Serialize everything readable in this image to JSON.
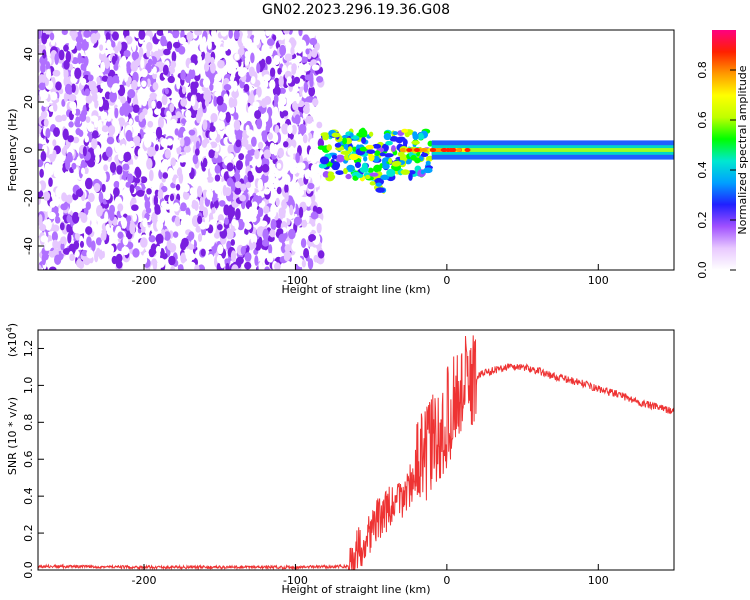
{
  "title": "GN02.2023.296.19.36.G08",
  "colors": {
    "snr_line": "#ee3333",
    "spectrogram_noise": "#7a1fe0",
    "colormap": [
      "#ffffff",
      "#e8c8ff",
      "#a050ff",
      "#2020ff",
      "#00a0ff",
      "#00e8d0",
      "#00ff00",
      "#c0ff00",
      "#ffff00",
      "#ff9900",
      "#ff2000",
      "#ff0080"
    ]
  },
  "chart_data": [
    {
      "type": "heatmap",
      "name": "spectrogram",
      "xlabel": "Height of straight line (km)",
      "ylabel": "Frequency (Hz)",
      "xlim": [
        -270,
        150
      ],
      "ylim": [
        -50,
        50
      ],
      "xticks": [
        -200,
        -100,
        0,
        100
      ],
      "yticks": [
        -40,
        -20,
        0,
        20,
        40
      ],
      "colorbar": {
        "label": "Normalized spectral amplitude",
        "range": [
          0,
          0.96
        ],
        "ticks": [
          0.0,
          0.2,
          0.4,
          0.6,
          0.8
        ]
      },
      "regions": [
        {
          "description_x": [
            -270,
            -83
          ],
          "freq_range": [
            -50,
            50
          ],
          "amplitude": 0.15
        },
        {
          "description_x": [
            -83,
            -10
          ],
          "freq_range": [
            -15,
            10
          ],
          "amplitude": 0.35
        },
        {
          "description_x": [
            -10,
            150
          ],
          "freq_range": [
            -3,
            3
          ],
          "amplitude": 0.6
        }
      ],
      "grid": false
    },
    {
      "type": "line",
      "name": "snr",
      "xlabel": "Height of straight line (km)",
      "ylabel": "SNR (10 * v/v)",
      "exponent_label": "(x10",
      "exponent_power": "4",
      "exponent_close": ")",
      "xlim": [
        -270,
        150
      ],
      "ylim": [
        0,
        1.3
      ],
      "xticks": [
        -200,
        -100,
        0,
        100
      ],
      "yticks": [
        0.0,
        0.2,
        0.4,
        0.6,
        0.8,
        1.0,
        1.2
      ],
      "x": [
        -270,
        -200,
        -100,
        -65,
        -60,
        -55,
        -50,
        -45,
        -40,
        -35,
        -30,
        -25,
        -20,
        -15,
        -10,
        -5,
        0,
        5,
        10,
        15,
        20,
        25,
        30,
        40,
        50,
        60,
        70,
        80,
        90,
        100,
        110,
        120,
        130,
        140,
        150
      ],
      "y": [
        0.02,
        0.015,
        0.015,
        0.02,
        0.1,
        0.15,
        0.22,
        0.28,
        0.32,
        0.35,
        0.38,
        0.45,
        0.55,
        0.6,
        0.7,
        0.68,
        0.82,
        0.92,
        0.98,
        1.02,
        1.05,
        1.07,
        1.08,
        1.1,
        1.1,
        1.08,
        1.05,
        1.03,
        1.01,
        0.98,
        0.96,
        0.93,
        0.9,
        0.88,
        0.86
      ],
      "grid": false
    }
  ]
}
